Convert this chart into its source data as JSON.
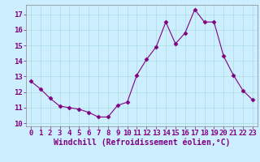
{
  "x": [
    0,
    1,
    2,
    3,
    4,
    5,
    6,
    7,
    8,
    9,
    10,
    11,
    12,
    13,
    14,
    15,
    16,
    17,
    18,
    19,
    20,
    21,
    22,
    23
  ],
  "y": [
    12.7,
    12.2,
    11.6,
    11.1,
    11.0,
    10.9,
    10.7,
    10.4,
    10.4,
    11.15,
    11.35,
    13.1,
    14.1,
    14.9,
    16.5,
    15.1,
    15.8,
    17.3,
    16.5,
    16.5,
    14.3,
    13.1,
    12.1,
    11.5
  ],
  "line_color": "#800080",
  "marker": "D",
  "marker_size": 2.5,
  "bg_color": "#cceeff",
  "grid_color": "#aadddd",
  "xlabel": "Windchill (Refroidissement éolien,°C)",
  "xlabel_fontsize": 7,
  "tick_fontsize": 6.5,
  "ylim": [
    9.8,
    17.6
  ],
  "xlim": [
    -0.5,
    23.5
  ],
  "yticks": [
    10,
    11,
    12,
    13,
    14,
    15,
    16,
    17
  ],
  "xticks": [
    0,
    1,
    2,
    3,
    4,
    5,
    6,
    7,
    8,
    9,
    10,
    11,
    12,
    13,
    14,
    15,
    16,
    17,
    18,
    19,
    20,
    21,
    22,
    23
  ]
}
